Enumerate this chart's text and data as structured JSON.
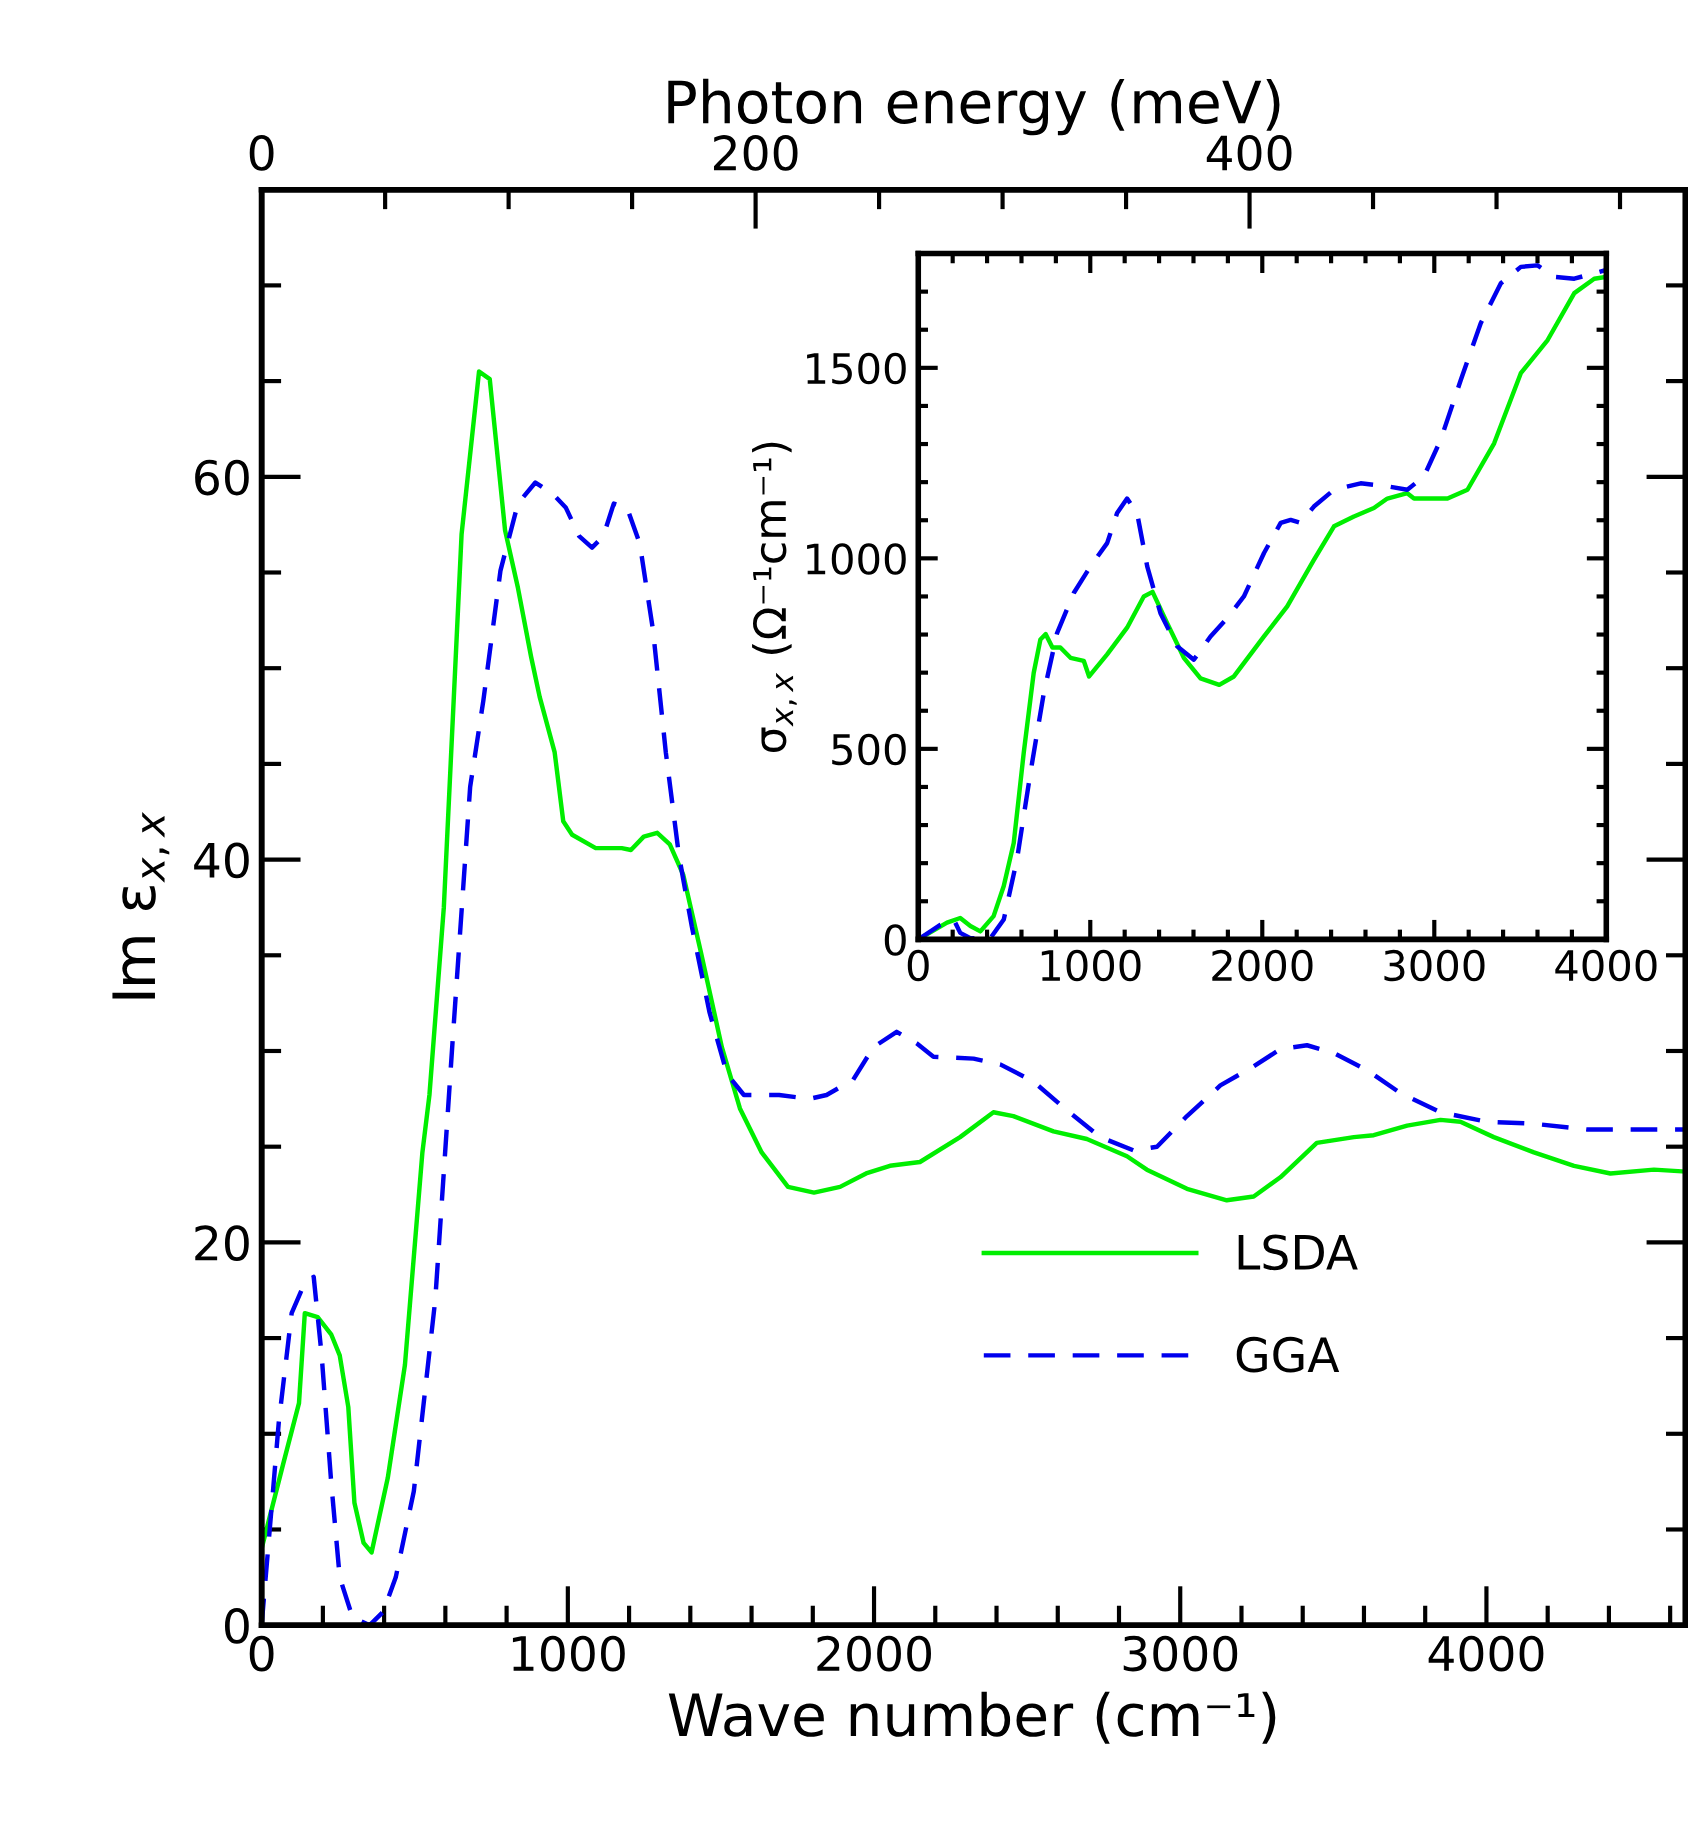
{
  "chart_data": [
    {
      "type": "line",
      "xlabel": "Wave number (cm⁻¹)",
      "ylabel": "Im ε$_{x,x}$",
      "x2label": "Photon energy (meV)",
      "xlim": [
        0,
        4650
      ],
      "ylim": [
        0,
        75
      ],
      "x2lim": [
        0,
        576.5
      ],
      "xticks": [
        0,
        {
          "value": 200,
          "label": null
        },
        {
          "value": 400,
          "label": null
        },
        {
          "value": 600,
          "label": null
        },
        {
          "value": 800,
          "label": null
        },
        1000,
        {
          "value": 1200,
          "label": null
        },
        {
          "value": 1400,
          "label": null
        },
        {
          "value": 1600,
          "label": null
        },
        {
          "value": 1800,
          "label": null
        },
        2000,
        {
          "value": 2200,
          "label": null
        },
        {
          "value": 2400,
          "label": null
        },
        {
          "value": 2600,
          "label": null
        },
        {
          "value": 2800,
          "label": null
        },
        3000,
        {
          "value": 3200,
          "label": null
        },
        {
          "value": 3400,
          "label": null
        },
        {
          "value": 3600,
          "label": null
        },
        {
          "value": 3800,
          "label": null
        },
        4000,
        {
          "value": 4200,
          "label": null
        },
        {
          "value": 4400,
          "label": null
        },
        {
          "value": 4600,
          "label": null
        }
      ],
      "yticks": [
        0,
        {
          "value": 5,
          "label": null
        },
        {
          "value": 10,
          "label": null
        },
        {
          "value": 15,
          "label": null
        },
        20,
        {
          "value": 25,
          "label": null
        },
        {
          "value": 30,
          "label": null
        },
        {
          "value": 35,
          "label": null
        },
        40,
        {
          "value": 45,
          "label": null
        },
        {
          "value": 50,
          "label": null
        },
        {
          "value": 55,
          "label": null
        },
        60,
        {
          "value": 65,
          "label": null
        },
        {
          "value": 70,
          "label": null
        }
      ],
      "x2ticks": [
        0,
        {
          "value": 50,
          "label": null
        },
        {
          "value": 100,
          "label": null
        },
        {
          "value": 150,
          "label": null
        },
        200,
        {
          "value": 250,
          "label": null
        },
        {
          "value": 300,
          "label": null
        },
        {
          "value": 350,
          "label": null
        },
        400,
        {
          "value": 450,
          "label": null
        },
        {
          "value": 500,
          "label": null
        },
        {
          "value": 550,
          "label": null
        }
      ],
      "grid": false,
      "legend": "lower right",
      "series": [
        {
          "name": "LSDA",
          "color": "#00ee00",
          "line_style": "solid",
          "x": [
            0,
            70,
            122,
            141,
            183,
            227,
            255,
            283,
            303,
            333,
            359,
            412,
            468,
            525,
            548,
            595,
            653,
            710,
            745,
            795,
            837,
            880,
            908,
            957,
            985,
            1014,
            1091,
            1176,
            1206,
            1248,
            1292,
            1333,
            1377,
            1434,
            1503,
            1562,
            1633,
            1719,
            1804,
            1889,
            1974,
            2052,
            2150,
            2281,
            2390,
            2455,
            2586,
            2695,
            2826,
            2891,
            3022,
            3152,
            3240,
            3327,
            3446,
            3567,
            3632,
            3741,
            3850,
            3915,
            4024,
            4155,
            4286,
            4405,
            4547,
            4650
          ],
          "values": [
            4.0,
            8.4,
            11.6,
            16.3,
            16.1,
            15.2,
            14.1,
            11.4,
            6.4,
            4.3,
            3.8,
            7.7,
            13.6,
            24.7,
            27.7,
            37.5,
            57.0,
            65.5,
            65.1,
            57.2,
            54.2,
            50.6,
            48.5,
            45.6,
            42.0,
            41.3,
            40.6,
            40.6,
            40.5,
            41.2,
            41.4,
            40.8,
            39.2,
            35.2,
            30.2,
            27.0,
            24.7,
            22.9,
            22.6,
            22.9,
            23.6,
            24.0,
            24.2,
            25.5,
            26.8,
            26.6,
            25.8,
            25.4,
            24.5,
            23.8,
            22.8,
            22.2,
            22.4,
            23.4,
            25.2,
            25.5,
            25.6,
            26.1,
            26.4,
            26.3,
            25.5,
            24.7,
            24.0,
            23.6,
            23.8,
            23.7
          ]
        },
        {
          "name": "GGA",
          "color": "#0000ee",
          "line_style": "dashed",
          "x": [
            0,
            56,
            98,
            141,
            170,
            196,
            227,
            255,
            297,
            353,
            397,
            438,
            497,
            567,
            624,
            681,
            724,
            780,
            837,
            894,
            951,
            993,
            1037,
            1079,
            1116,
            1150,
            1193,
            1235,
            1278,
            1320,
            1363,
            1405,
            1463,
            1520,
            1575,
            1690,
            1790,
            1845,
            1932,
            1998,
            2074,
            2139,
            2194,
            2325,
            2412,
            2521,
            2630,
            2739,
            2848,
            2924,
            3022,
            3131,
            3240,
            3327,
            3414,
            3501,
            3610,
            3719,
            3850,
            4002,
            4155,
            4329,
            4650
          ],
          "values": [
            0.0,
            10.6,
            16.3,
            17.9,
            18.2,
            14.1,
            7.5,
            2.5,
            0.4,
            0.0,
            0.7,
            2.5,
            7.0,
            17.0,
            30.6,
            43.8,
            48.3,
            55.1,
            58.6,
            59.7,
            59.1,
            58.4,
            56.9,
            56.3,
            56.9,
            58.6,
            58.4,
            56.5,
            52.0,
            45.6,
            40.2,
            36.5,
            32.0,
            28.8,
            27.7,
            27.7,
            27.5,
            27.7,
            28.5,
            30.2,
            31.0,
            30.4,
            29.7,
            29.6,
            29.3,
            28.4,
            26.9,
            25.5,
            24.8,
            25.0,
            26.6,
            28.2,
            29.2,
            30.1,
            30.3,
            29.9,
            29.0,
            27.8,
            26.8,
            26.3,
            26.2,
            25.9,
            25.9
          ]
        }
      ]
    },
    {
      "type": "line",
      "ylabel": "σ$_{x,x}$ (Ω⁻¹cm⁻¹)",
      "xlim": [
        0,
        4000
      ],
      "ylim": [
        0,
        1800
      ],
      "xticks": [
        0,
        {
          "value": 200,
          "label": null
        },
        {
          "value": 400,
          "label": null
        },
        {
          "value": 600,
          "label": null
        },
        {
          "value": 800,
          "label": null
        },
        1000,
        {
          "value": 1200,
          "label": null
        },
        {
          "value": 1400,
          "label": null
        },
        {
          "value": 1600,
          "label": null
        },
        {
          "value": 1800,
          "label": null
        },
        2000,
        {
          "value": 2200,
          "label": null
        },
        {
          "value": 2400,
          "label": null
        },
        {
          "value": 2600,
          "label": null
        },
        {
          "value": 2800,
          "label": null
        },
        3000,
        {
          "value": 3200,
          "label": null
        },
        {
          "value": 3400,
          "label": null
        },
        {
          "value": 3600,
          "label": null
        },
        {
          "value": 3800,
          "label": null
        },
        4000
      ],
      "yticks": [
        0,
        {
          "value": 100,
          "label": null
        },
        {
          "value": 200,
          "label": null
        },
        {
          "value": 300,
          "label": null
        },
        {
          "value": 400,
          "label": null
        },
        500,
        {
          "value": 600,
          "label": null
        },
        {
          "value": 700,
          "label": null
        },
        {
          "value": 800,
          "label": null
        },
        {
          "value": 900,
          "label": null
        },
        1000,
        {
          "value": 1100,
          "label": null
        },
        {
          "value": 1200,
          "label": null
        },
        {
          "value": 1300,
          "label": null
        },
        {
          "value": 1400,
          "label": null
        },
        1500,
        {
          "value": 1600,
          "label": null
        },
        {
          "value": 1700,
          "label": null
        }
      ],
      "grid": false,
      "series": [
        {
          "color": "#00ee00",
          "line_style": "solid",
          "x": [
            0,
            167,
            244,
            303,
            361,
            438,
            497,
            555,
            613,
            671,
            710,
            741,
            780,
            826,
            885,
            962,
            993,
            1098,
            1214,
            1311,
            1362,
            1447,
            1544,
            1641,
            1750,
            1835,
            2010,
            2145,
            2300,
            2417,
            2533,
            2649,
            2727,
            2843,
            2882,
            3077,
            3193,
            3348,
            3503,
            3659,
            3814,
            3930,
            4000
          ],
          "values": [
            0,
            44,
            56,
            35,
            21,
            61,
            140,
            253,
            489,
            699,
            787,
            801,
            766,
            766,
            739,
            731,
            690,
            748,
            818,
            900,
            912,
            830,
            739,
            685,
            668,
            690,
            795,
            874,
            996,
            1084,
            1110,
            1132,
            1157,
            1171,
            1157,
            1157,
            1180,
            1302,
            1486,
            1573,
            1696,
            1734,
            1739
          ]
        },
        {
          "color": "#0000ee",
          "line_style": "dashed",
          "x": [
            0,
            128,
            206,
            244,
            303,
            419,
            497,
            574,
            652,
            730,
            807,
            904,
            1001,
            1098,
            1156,
            1214,
            1272,
            1331,
            1408,
            1505,
            1602,
            1699,
            1796,
            1893,
            2010,
            2107,
            2165,
            2223,
            2300,
            2417,
            2572,
            2727,
            2843,
            2940,
            3037,
            3154,
            3270,
            3387,
            3503,
            3600,
            3697,
            3814,
            4000
          ],
          "values": [
            0,
            38,
            52,
            17,
            3,
            3,
            52,
            210,
            437,
            647,
            804,
            909,
            979,
            1040,
            1119,
            1157,
            1119,
            979,
            856,
            769,
            734,
            795,
            843,
            900,
            1014,
            1093,
            1101,
            1093,
            1136,
            1180,
            1197,
            1189,
            1180,
            1215,
            1311,
            1468,
            1617,
            1722,
            1765,
            1769,
            1739,
            1734,
            1757
          ]
        }
      ]
    }
  ]
}
